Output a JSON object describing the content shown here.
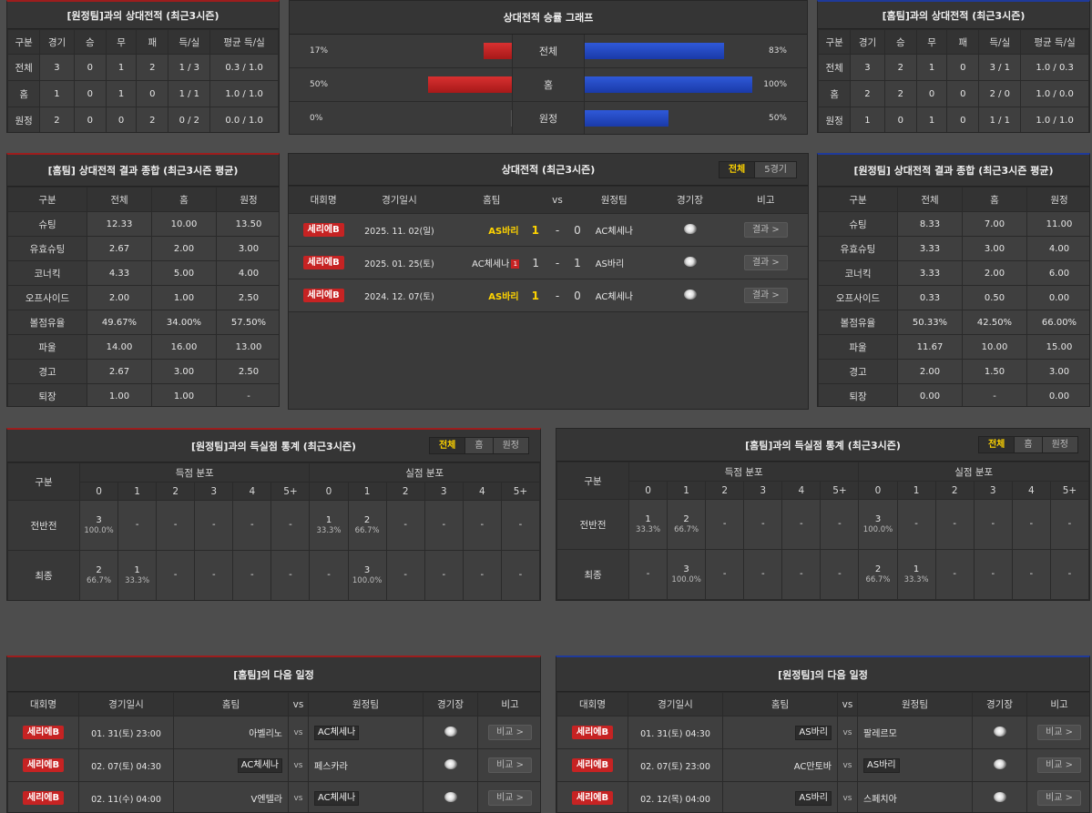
{
  "away_h2h": {
    "title": "[원정팀]과의 상대전적 (최근3시즌)",
    "headers": [
      "구분",
      "경기",
      "승",
      "무",
      "패",
      "득/실",
      "평균 득/실"
    ],
    "rows": [
      [
        "전체",
        "3",
        "0",
        "1",
        "2",
        "1 / 3",
        "0.3 / 1.0"
      ],
      [
        "홈",
        "1",
        "0",
        "1",
        "0",
        "1 / 1",
        "1.0 / 1.0"
      ],
      [
        "원정",
        "2",
        "0",
        "0",
        "2",
        "0 / 2",
        "0.0 / 1.0"
      ]
    ]
  },
  "graph": {
    "title": "상대전적 승률 그래프",
    "rows": [
      {
        "label": "전체",
        "left_pct": "17%",
        "left": 17,
        "right_pct": "83%",
        "right": 83
      },
      {
        "label": "홈",
        "left_pct": "50%",
        "left": 50,
        "right_pct": "100%",
        "right": 100
      },
      {
        "label": "원정",
        "left_pct": "0%",
        "left": 0,
        "right_pct": "50%",
        "right": 50
      }
    ]
  },
  "home_h2h": {
    "title": "[홈팀]과의 상대전적 (최근3시즌)",
    "headers": [
      "구분",
      "경기",
      "승",
      "무",
      "패",
      "득/실",
      "평균 득/실"
    ],
    "rows": [
      [
        "전체",
        "3",
        "2",
        "1",
        "0",
        "3 / 1",
        "1.0 / 0.3"
      ],
      [
        "홈",
        "2",
        "2",
        "0",
        "0",
        "2 / 0",
        "1.0 / 0.0"
      ],
      [
        "원정",
        "1",
        "0",
        "1",
        "0",
        "1 / 1",
        "1.0 / 1.0"
      ]
    ]
  },
  "home_summary": {
    "title": "[홈팀] 상대전적 결과 종합 (최근3시즌 평균)",
    "headers": [
      "구분",
      "전체",
      "홈",
      "원정"
    ],
    "rows": [
      [
        "슈팅",
        "12.33",
        "10.00",
        "13.50"
      ],
      [
        "유효슈팅",
        "2.67",
        "2.00",
        "3.00"
      ],
      [
        "코너킥",
        "4.33",
        "5.00",
        "4.00"
      ],
      [
        "오프사이드",
        "2.00",
        "1.00",
        "2.50"
      ],
      [
        "볼점유율",
        "49.67%",
        "34.00%",
        "57.50%"
      ],
      [
        "파울",
        "14.00",
        "16.00",
        "13.00"
      ],
      [
        "경고",
        "2.67",
        "3.00",
        "2.50"
      ],
      [
        "퇴장",
        "1.00",
        "1.00",
        "-"
      ]
    ]
  },
  "away_summary": {
    "title": "[원정팀] 상대전적 결과 종합 (최근3시즌 평균)",
    "headers": [
      "구분",
      "전체",
      "홈",
      "원정"
    ],
    "rows": [
      [
        "슈팅",
        "8.33",
        "7.00",
        "11.00"
      ],
      [
        "유효슈팅",
        "3.33",
        "3.00",
        "4.00"
      ],
      [
        "코너킥",
        "3.33",
        "2.00",
        "6.00"
      ],
      [
        "오프사이드",
        "0.33",
        "0.50",
        "0.00"
      ],
      [
        "볼점유율",
        "50.33%",
        "42.50%",
        "66.00%"
      ],
      [
        "파울",
        "11.67",
        "10.00",
        "15.00"
      ],
      [
        "경고",
        "2.00",
        "1.50",
        "3.00"
      ],
      [
        "퇴장",
        "0.00",
        "-",
        "0.00"
      ]
    ]
  },
  "matches": {
    "title": "상대전적 (최근3시즌)",
    "tabs": [
      "전체",
      "5경기"
    ],
    "headers": [
      "대회명",
      "경기일시",
      "홈팀",
      "vs",
      "원정팀",
      "경기장",
      "비고"
    ],
    "rows": [
      {
        "league": "세리에B",
        "date": "2025. 11. 02(일)",
        "home": "AS바리",
        "score_h": "1",
        "sep": "-",
        "score_a": "0",
        "away": "AC체세나",
        "btn": "결과 >",
        "home_win": true,
        "red": ""
      },
      {
        "league": "세리에B",
        "date": "2025. 01. 25(토)",
        "home": "AC체세나",
        "score_h": "1",
        "sep": "-",
        "score_a": "1",
        "away": "AS바리",
        "btn": "결과 >",
        "home_win": false,
        "red": "1"
      },
      {
        "league": "세리에B",
        "date": "2024. 12. 07(토)",
        "home": "AS바리",
        "score_h": "1",
        "sep": "-",
        "score_a": "0",
        "away": "AC체세나",
        "btn": "결과 >",
        "home_win": true,
        "red": ""
      }
    ]
  },
  "goal_away": {
    "title": "[원정팀]과의 득실점 통계 (최근3시즌)",
    "tabs": [
      "전체",
      "홈",
      "원정"
    ],
    "col_label": "구분",
    "scored": "득점 분포",
    "conceded": "실점 분포",
    "bins": [
      "0",
      "1",
      "2",
      "3",
      "4",
      "5+"
    ],
    "rows": [
      {
        "label": "전반전",
        "cells": [
          [
            "3",
            "100.0%"
          ],
          [
            "-",
            ""
          ],
          [
            "-",
            ""
          ],
          [
            "-",
            ""
          ],
          [
            "-",
            ""
          ],
          [
            "-",
            ""
          ],
          [
            "1",
            "33.3%"
          ],
          [
            "2",
            "66.7%"
          ],
          [
            "-",
            ""
          ],
          [
            "-",
            ""
          ],
          [
            "-",
            ""
          ],
          [
            "-",
            ""
          ]
        ]
      },
      {
        "label": "최종",
        "cells": [
          [
            "2",
            "66.7%"
          ],
          [
            "1",
            "33.3%"
          ],
          [
            "-",
            ""
          ],
          [
            "-",
            ""
          ],
          [
            "-",
            ""
          ],
          [
            "-",
            ""
          ],
          [
            "-",
            ""
          ],
          [
            "3",
            "100.0%"
          ],
          [
            "-",
            ""
          ],
          [
            "-",
            ""
          ],
          [
            "-",
            ""
          ],
          [
            "-",
            ""
          ]
        ]
      }
    ]
  },
  "goal_home": {
    "title": "[홈팀]과의 득실점 통계 (최근3시즌)",
    "tabs": [
      "전체",
      "홈",
      "원정"
    ],
    "col_label": "구분",
    "scored": "득점 분포",
    "conceded": "실점 분포",
    "bins": [
      "0",
      "1",
      "2",
      "3",
      "4",
      "5+"
    ],
    "rows": [
      {
        "label": "전반전",
        "cells": [
          [
            "1",
            "33.3%"
          ],
          [
            "2",
            "66.7%"
          ],
          [
            "-",
            ""
          ],
          [
            "-",
            ""
          ],
          [
            "-",
            ""
          ],
          [
            "-",
            ""
          ],
          [
            "3",
            "100.0%"
          ],
          [
            "-",
            ""
          ],
          [
            "-",
            ""
          ],
          [
            "-",
            ""
          ],
          [
            "-",
            ""
          ],
          [
            "-",
            ""
          ]
        ]
      },
      {
        "label": "최종",
        "cells": [
          [
            "-",
            ""
          ],
          [
            "3",
            "100.0%"
          ],
          [
            "-",
            ""
          ],
          [
            "-",
            ""
          ],
          [
            "-",
            ""
          ],
          [
            "-",
            ""
          ],
          [
            "2",
            "66.7%"
          ],
          [
            "1",
            "33.3%"
          ],
          [
            "-",
            ""
          ],
          [
            "-",
            ""
          ],
          [
            "-",
            ""
          ],
          [
            "-",
            ""
          ]
        ]
      }
    ]
  },
  "home_next": {
    "title": "[홈팀]의 다음 일정",
    "headers": [
      "대회명",
      "경기일시",
      "홈팀",
      "vs",
      "원정팀",
      "경기장",
      "비고"
    ],
    "rows": [
      {
        "league": "세리에B",
        "date": "01. 31(토) 23:00",
        "home": "아벨리노",
        "vs": "vs",
        "away": "AC체세나",
        "hl": "away",
        "btn": "비교 >"
      },
      {
        "league": "세리에B",
        "date": "02. 07(토) 04:30",
        "home": "AC체세나",
        "vs": "vs",
        "away": "페스카라",
        "hl": "home",
        "btn": "비교 >"
      },
      {
        "league": "세리에B",
        "date": "02. 11(수) 04:00",
        "home": "V엔텔라",
        "vs": "vs",
        "away": "AC체세나",
        "hl": "away",
        "btn": "비교 >"
      }
    ]
  },
  "away_next": {
    "title": "[원정팀]의 다음 일정",
    "headers": [
      "대회명",
      "경기일시",
      "홈팀",
      "vs",
      "원정팀",
      "경기장",
      "비고"
    ],
    "rows": [
      {
        "league": "세리에B",
        "date": "01. 31(토) 04:30",
        "home": "AS바리",
        "vs": "vs",
        "away": "팔레르모",
        "hl": "home",
        "btn": "비교 >"
      },
      {
        "league": "세리에B",
        "date": "02. 07(토) 23:00",
        "home": "AC만토바",
        "vs": "vs",
        "away": "AS바리",
        "hl": "away",
        "btn": "비교 >"
      },
      {
        "league": "세리에B",
        "date": "02. 12(목) 04:00",
        "home": "AS바리",
        "vs": "vs",
        "away": "스페치아",
        "hl": "home",
        "btn": "비교 >"
      }
    ]
  }
}
